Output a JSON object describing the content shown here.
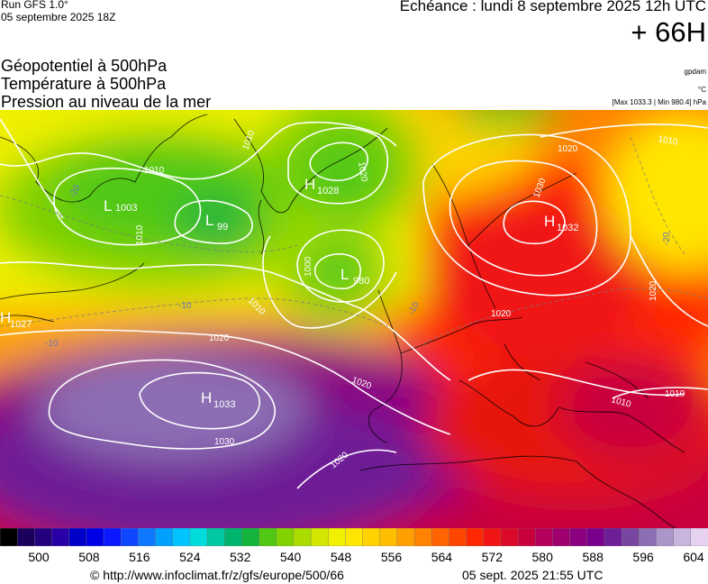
{
  "header": {
    "run": "Run GFS 1.0°",
    "run_date": "05 septembre 2025 18Z",
    "valid": "Echéance : lundi 8 septembre 2025 12h UTC",
    "lead": "+ 66H"
  },
  "variables": [
    {
      "label": "Géopotentiel à 500hPa",
      "unit": "gpdam"
    },
    {
      "label": "Température à 500hPa",
      "unit": "°C"
    },
    {
      "label": "Pression au niveau de la mer",
      "unit": "[Max 1033.3 | Min 980.4] hPa"
    }
  ],
  "map": {
    "pressure_centers": [
      {
        "type": "L",
        "value": "1003"
      },
      {
        "type": "L",
        "value": "99"
      },
      {
        "type": "H",
        "value": "1028"
      },
      {
        "type": "L",
        "value": "980"
      },
      {
        "type": "H",
        "value": "1032"
      },
      {
        "type": "H",
        "value": "1027"
      },
      {
        "type": "H",
        "value": "1033"
      }
    ],
    "isobar_labels": [
      "1010",
      "1010",
      "1020",
      "1010",
      "1000",
      "1010",
      "1020",
      "1030",
      "1020",
      "1020",
      "1010",
      "1020",
      "1030",
      "1020",
      "1010",
      "1010",
      "1020"
    ],
    "temperature_labels": [
      "-20",
      "-10",
      "-10",
      "-10",
      "-20"
    ]
  },
  "scale": {
    "colors": [
      "#000000",
      "#1a005a",
      "#25007e",
      "#2800a5",
      "#0000c8",
      "#0000e6",
      "#0a19ff",
      "#0f46ff",
      "#0f78ff",
      "#00a0ff",
      "#00c3ff",
      "#00dcdc",
      "#00c8a0",
      "#00b46e",
      "#14b43c",
      "#50c814",
      "#82d200",
      "#aadc00",
      "#d2e600",
      "#f0f000",
      "#ffe600",
      "#ffd200",
      "#ffbe00",
      "#ffa000",
      "#ff8200",
      "#ff6400",
      "#ff4600",
      "#ff2800",
      "#f01414",
      "#dc0a28",
      "#c8003c",
      "#b4005a",
      "#a0006e",
      "#8c0082",
      "#78008c",
      "#6e1e96",
      "#7846a0",
      "#8c6eb4",
      "#aa96c8",
      "#c8b4dc",
      "#e6d2f0"
    ],
    "ticks": [
      "500",
      "508",
      "516",
      "524",
      "532",
      "540",
      "548",
      "556",
      "564",
      "572",
      "580",
      "588",
      "596",
      "604"
    ]
  },
  "footer": {
    "url": "© http://www.infoclimat.fr/z/gfs/europe/500/66",
    "generated": "05 sept. 2025 21:55 UTC"
  }
}
